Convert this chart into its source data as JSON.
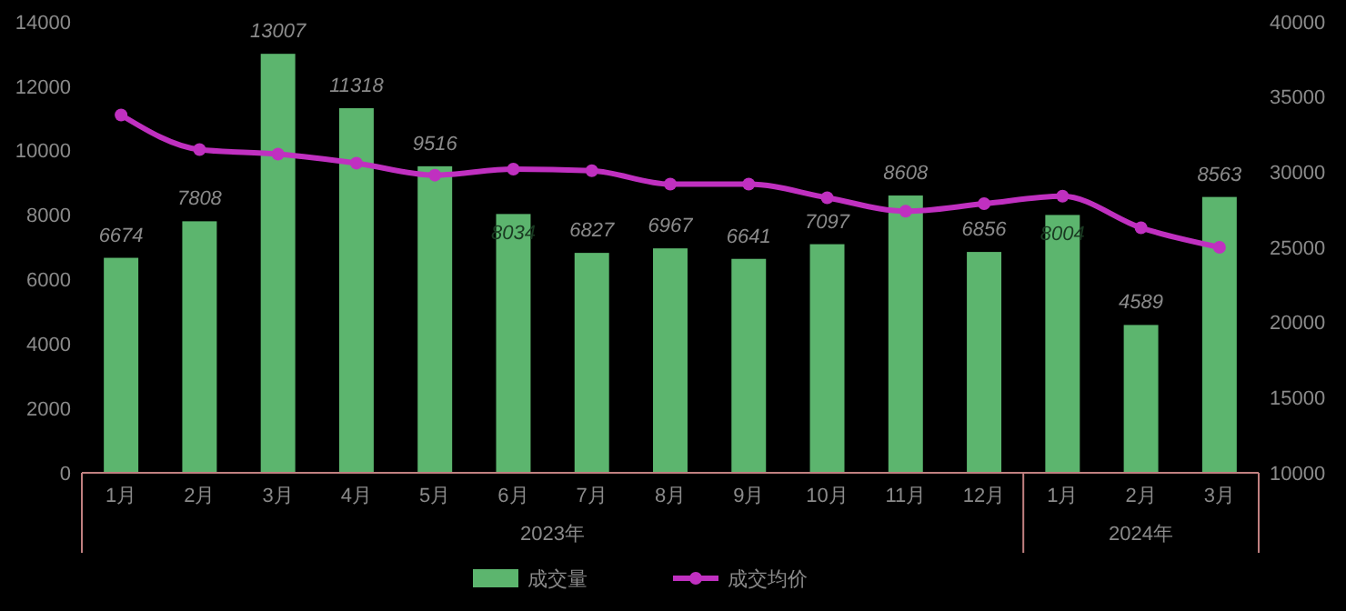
{
  "chart_data": {
    "type": "bar",
    "categories": [
      "1月",
      "2月",
      "3月",
      "4月",
      "5月",
      "6月",
      "7月",
      "8月",
      "9月",
      "10月",
      "11月",
      "12月",
      "1月",
      "2月",
      "3月"
    ],
    "series": [
      {
        "name": "成交量",
        "color": "#5cb56e",
        "values": [
          6674,
          7808,
          13007,
          11318,
          9516,
          8034,
          6827,
          6967,
          6641,
          7097,
          8608,
          6856,
          8004,
          4589,
          8563
        ],
        "value_labels": [
          "6674",
          "7808",
          "13007",
          "11318",
          "9516",
          "8034",
          "6827",
          "6967",
          "6641",
          "7097",
          "8608",
          "6856",
          "8004",
          "4589",
          "8563"
        ]
      },
      {
        "name": "成交均价",
        "type": "line",
        "axis": "y2",
        "color": "#c030c0",
        "values": [
          33800,
          31500,
          31200,
          30600,
          29800,
          30200,
          30100,
          29200,
          29200,
          28300,
          27400,
          27900,
          28400,
          26300,
          25000
        ]
      }
    ],
    "ylim": [
      0,
      14000
    ],
    "yticks": [
      0,
      2000,
      4000,
      6000,
      8000,
      10000,
      12000,
      14000
    ],
    "y2lim": [
      10000,
      40000
    ],
    "y2ticks": [
      10000,
      15000,
      20000,
      25000,
      30000,
      35000,
      40000
    ],
    "annotations": [
      "2023年",
      "2024年"
    ],
    "marker": "circle",
    "legend": "bottom"
  }
}
